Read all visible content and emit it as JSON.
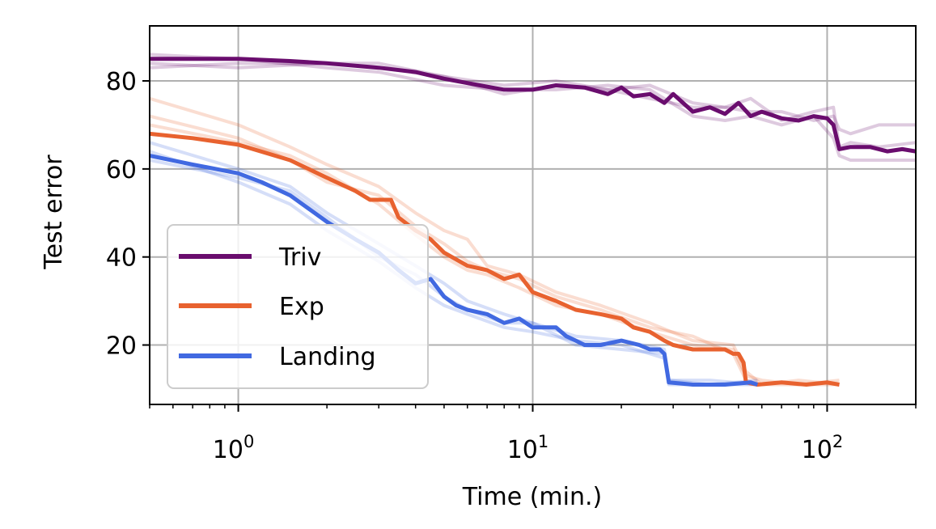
{
  "chart_data": {
    "type": "line",
    "xscale": "log",
    "xlabel": "Time (min.)",
    "ylabel": "Test error",
    "xlim": [
      0.5,
      200
    ],
    "ylim": [
      6.5,
      92.5
    ],
    "grid": true,
    "legend_position": "lower-left",
    "x_ticks": [
      {
        "base": "10",
        "exp": "0",
        "value": 1
      },
      {
        "base": "10",
        "exp": "1",
        "value": 10
      },
      {
        "base": "10",
        "exp": "2",
        "value": 100
      }
    ],
    "y_ticks": [
      {
        "label": "20",
        "value": 20
      },
      {
        "label": "40",
        "value": 40
      },
      {
        "label": "60",
        "value": 60
      },
      {
        "label": "80",
        "value": 80
      }
    ],
    "series": [
      {
        "name": "Triv",
        "color": "#6a0d6e",
        "mean": [
          [
            0.5,
            85
          ],
          [
            0.7,
            85
          ],
          [
            1.0,
            85
          ],
          [
            1.5,
            84.5
          ],
          [
            2.0,
            84
          ],
          [
            3.0,
            83
          ],
          [
            4.0,
            82
          ],
          [
            5.0,
            80.5
          ],
          [
            6.0,
            79.5
          ],
          [
            8.0,
            78
          ],
          [
            10,
            78
          ],
          [
            12,
            79
          ],
          [
            15,
            78.5
          ],
          [
            18,
            77
          ],
          [
            20,
            78.5
          ],
          [
            22,
            76.5
          ],
          [
            25,
            77
          ],
          [
            28,
            75
          ],
          [
            30,
            77
          ],
          [
            35,
            73
          ],
          [
            40,
            74
          ],
          [
            45,
            72.5
          ],
          [
            50,
            75
          ],
          [
            55,
            72
          ],
          [
            60,
            73
          ],
          [
            70,
            71.5
          ],
          [
            80,
            71
          ],
          [
            90,
            72
          ],
          [
            100,
            71.5
          ],
          [
            105,
            70
          ],
          [
            110,
            64.5
          ],
          [
            120,
            65
          ],
          [
            140,
            65
          ],
          [
            160,
            64
          ],
          [
            180,
            64.5
          ],
          [
            200,
            64
          ]
        ],
        "runs": [
          [
            [
              0.5,
              83
            ],
            [
              1.0,
              84
            ],
            [
              2.0,
              84
            ],
            [
              3.0,
              84
            ],
            [
              5.0,
              81
            ],
            [
              8.0,
              79
            ],
            [
              12,
              80
            ],
            [
              18,
              78
            ],
            [
              25,
              76
            ],
            [
              35,
              74
            ],
            [
              45,
              74
            ],
            [
              55,
              73
            ],
            [
              70,
              73
            ],
            [
              90,
              71
            ],
            [
              105,
              72
            ],
            [
              110,
              69
            ],
            [
              120,
              68
            ],
            [
              150,
              70
            ],
            [
              200,
              70
            ]
          ],
          [
            [
              0.5,
              86
            ],
            [
              1.0,
              85
            ],
            [
              2.0,
              83
            ],
            [
              3.0,
              82
            ],
            [
              5.0,
              79
            ],
            [
              8.0,
              78
            ],
            [
              12,
              78
            ],
            [
              18,
              79
            ],
            [
              25,
              78
            ],
            [
              35,
              72
            ],
            [
              45,
              71
            ],
            [
              55,
              72
            ],
            [
              70,
              70
            ],
            [
              90,
              72
            ],
            [
              105,
              67
            ],
            [
              110,
              63
            ],
            [
              120,
              62
            ],
            [
              150,
              62
            ],
            [
              200,
              62
            ]
          ],
          [
            [
              0.5,
              84
            ],
            [
              1.0,
              83
            ],
            [
              2.0,
              84
            ],
            [
              3.0,
              83
            ],
            [
              5.0,
              81
            ],
            [
              8.0,
              77
            ],
            [
              12,
              79
            ],
            [
              18,
              78
            ],
            [
              25,
              79
            ],
            [
              35,
              75
            ],
            [
              45,
              74
            ],
            [
              55,
              76
            ],
            [
              70,
              71
            ],
            [
              90,
              73
            ],
            [
              105,
              74
            ],
            [
              110,
              65
            ],
            [
              120,
              66
            ],
            [
              150,
              65
            ],
            [
              200,
              66
            ]
          ]
        ]
      },
      {
        "name": "Exp",
        "color": "#e8622f",
        "mean": [
          [
            0.5,
            68
          ],
          [
            0.7,
            67
          ],
          [
            1.0,
            65.5
          ],
          [
            1.5,
            62
          ],
          [
            2.0,
            58
          ],
          [
            2.5,
            55
          ],
          [
            2.8,
            53
          ],
          [
            3.3,
            53
          ],
          [
            3.5,
            49
          ],
          [
            4.0,
            46
          ],
          [
            4.5,
            44
          ],
          [
            5.0,
            41
          ],
          [
            6.0,
            38
          ],
          [
            7.0,
            37
          ],
          [
            8.0,
            35
          ],
          [
            9.0,
            36
          ],
          [
            10,
            32
          ],
          [
            12,
            30
          ],
          [
            14,
            28
          ],
          [
            17,
            27
          ],
          [
            20,
            26
          ],
          [
            22,
            24
          ],
          [
            25,
            23
          ],
          [
            28,
            21
          ],
          [
            30,
            20
          ],
          [
            35,
            19
          ],
          [
            40,
            19
          ],
          [
            45,
            19
          ],
          [
            48,
            18
          ],
          [
            50,
            18
          ],
          [
            52,
            16
          ],
          [
            53,
            11.5
          ],
          [
            58,
            11
          ],
          [
            70,
            11.5
          ],
          [
            85,
            11
          ],
          [
            100,
            11.5
          ],
          [
            110,
            11
          ]
        ],
        "runs": [
          [
            [
              0.5,
              76
            ],
            [
              1.0,
              70
            ],
            [
              1.5,
              65
            ],
            [
              2.0,
              61
            ],
            [
              3.0,
              56
            ],
            [
              4.0,
              50
            ],
            [
              5.0,
              46
            ],
            [
              6.0,
              44
            ],
            [
              7.0,
              38
            ],
            [
              9.0,
              36
            ],
            [
              12,
              32
            ],
            [
              17,
              29
            ],
            [
              25,
              25
            ],
            [
              35,
              21
            ],
            [
              48,
              20
            ],
            [
              53,
              14
            ],
            [
              60,
              11
            ],
            [
              80,
              12
            ],
            [
              110,
              11
            ]
          ],
          [
            [
              0.5,
              70
            ],
            [
              1.0,
              66
            ],
            [
              1.5,
              63
            ],
            [
              2.0,
              59
            ],
            [
              3.0,
              52
            ],
            [
              4.0,
              45
            ],
            [
              5.0,
              40
            ],
            [
              6.0,
              37
            ],
            [
              7.0,
              36
            ],
            [
              9.0,
              33
            ],
            [
              12,
              29
            ],
            [
              17,
              27
            ],
            [
              25,
              23
            ],
            [
              35,
              20
            ],
            [
              48,
              19
            ],
            [
              53,
              13
            ],
            [
              60,
              12
            ],
            [
              80,
              11
            ],
            [
              110,
              12
            ]
          ],
          [
            [
              0.5,
              72
            ],
            [
              1.0,
              67
            ],
            [
              1.5,
              62
            ],
            [
              2.0,
              57
            ],
            [
              3.0,
              54
            ],
            [
              4.0,
              47
            ],
            [
              5.0,
              43
            ],
            [
              6.0,
              39
            ],
            [
              7.0,
              37
            ],
            [
              9.0,
              35
            ],
            [
              12,
              31
            ],
            [
              17,
              28
            ],
            [
              25,
              24
            ],
            [
              35,
              22
            ],
            [
              48,
              18
            ],
            [
              53,
              12
            ],
            [
              60,
              11
            ],
            [
              80,
              11
            ],
            [
              110,
              11
            ]
          ]
        ]
      },
      {
        "name": "Landing",
        "color": "#4169e1",
        "mean": [
          [
            0.5,
            63
          ],
          [
            0.7,
            61
          ],
          [
            1.0,
            59
          ],
          [
            1.2,
            57
          ],
          [
            1.5,
            54
          ],
          [
            2.0,
            48
          ],
          [
            2.5,
            44
          ],
          [
            3.0,
            41
          ],
          [
            3.5,
            37
          ],
          [
            4.0,
            34
          ],
          [
            4.5,
            35
          ],
          [
            5.0,
            31
          ],
          [
            5.5,
            29
          ],
          [
            6.0,
            28
          ],
          [
            7.0,
            27
          ],
          [
            8.0,
            25
          ],
          [
            9.0,
            26
          ],
          [
            10,
            24
          ],
          [
            12,
            24
          ],
          [
            13,
            22
          ],
          [
            14,
            21
          ],
          [
            15,
            20
          ],
          [
            17,
            20
          ],
          [
            20,
            21
          ],
          [
            23,
            20
          ],
          [
            25,
            19
          ],
          [
            27,
            19
          ],
          [
            28,
            18
          ],
          [
            29,
            11.5
          ],
          [
            35,
            11
          ],
          [
            45,
            11
          ],
          [
            55,
            11.5
          ],
          [
            58,
            11
          ]
        ],
        "runs": [
          [
            [
              0.5,
              66
            ],
            [
              1.0,
              60
            ],
            [
              1.5,
              56
            ],
            [
              2.0,
              50
            ],
            [
              3.0,
              43
            ],
            [
              4.0,
              38
            ],
            [
              5.0,
              34
            ],
            [
              6.0,
              30
            ],
            [
              8.0,
              27
            ],
            [
              10,
              25
            ],
            [
              14,
              22
            ],
            [
              20,
              21
            ],
            [
              28,
              19
            ],
            [
              29,
              12
            ],
            [
              40,
              11
            ],
            [
              58,
              11
            ]
          ],
          [
            [
              0.5,
              64
            ],
            [
              1.0,
              57
            ],
            [
              1.5,
              52
            ],
            [
              2.0,
              46
            ],
            [
              3.0,
              39
            ],
            [
              4.0,
              33
            ],
            [
              5.0,
              29
            ],
            [
              6.0,
              27
            ],
            [
              8.0,
              24
            ],
            [
              10,
              23
            ],
            [
              14,
              21
            ],
            [
              20,
              20
            ],
            [
              28,
              17
            ],
            [
              29,
              11
            ],
            [
              40,
              11
            ],
            [
              58,
              12
            ]
          ],
          [
            [
              0.5,
              62
            ],
            [
              1.0,
              58
            ],
            [
              1.5,
              55
            ],
            [
              2.0,
              49
            ],
            [
              3.0,
              40
            ],
            [
              4.0,
              36
            ],
            [
              5.0,
              31
            ],
            [
              6.0,
              28
            ],
            [
              8.0,
              25
            ],
            [
              10,
              25
            ],
            [
              14,
              20
            ],
            [
              20,
              19
            ],
            [
              28,
              18
            ],
            [
              29,
              12
            ],
            [
              40,
              12
            ],
            [
              58,
              11
            ]
          ]
        ]
      }
    ]
  }
}
